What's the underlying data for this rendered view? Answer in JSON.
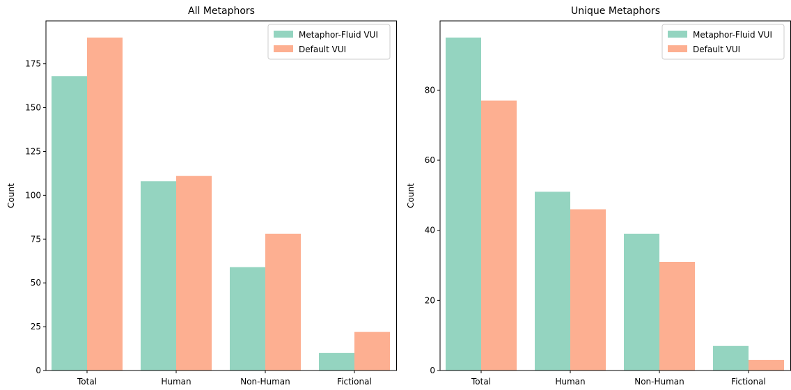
{
  "colors": {
    "metaphor_fluid": "#66c2a5",
    "default": "#fc8d62"
  },
  "chart_data": [
    {
      "type": "bar",
      "title": "All Metaphors",
      "xlabel": "",
      "ylabel": "Count",
      "categories": [
        "Total",
        "Human",
        "Non-Human",
        "Fictional"
      ],
      "series": [
        {
          "name": "Metaphor-Fluid VUI",
          "values": [
            168,
            108,
            59,
            10
          ]
        },
        {
          "name": "Default VUI",
          "values": [
            190,
            111,
            78,
            22
          ]
        }
      ],
      "yticks": [
        0,
        25,
        50,
        75,
        100,
        125,
        150,
        175
      ],
      "ylim": [
        0,
        199.5
      ],
      "legend": "top-right",
      "grid": false
    },
    {
      "type": "bar",
      "title": "Unique Metaphors",
      "xlabel": "",
      "ylabel": "Count",
      "categories": [
        "Total",
        "Human",
        "Non-Human",
        "Fictional"
      ],
      "series": [
        {
          "name": "Metaphor-Fluid VUI",
          "values": [
            95,
            51,
            39,
            7
          ]
        },
        {
          "name": "Default VUI",
          "values": [
            77,
            46,
            31,
            3
          ]
        }
      ],
      "yticks": [
        0,
        20,
        40,
        60,
        80
      ],
      "ylim": [
        0,
        99.75
      ],
      "legend": "top-right",
      "grid": false
    }
  ]
}
